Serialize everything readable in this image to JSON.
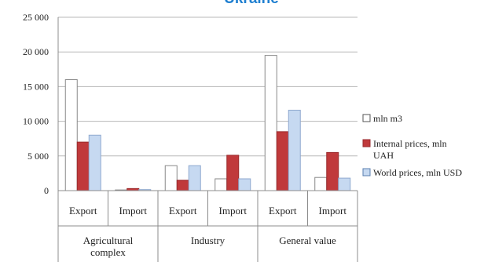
{
  "chart_data": {
    "type": "bar",
    "title": "Ukraine",
    "categories": [
      "Export",
      "Import",
      "Export",
      "Import",
      "Export",
      "Import"
    ],
    "groups": [
      {
        "label": "Agricultural complex",
        "categories": [
          "Export",
          "Import"
        ]
      },
      {
        "label": "Industry",
        "categories": [
          "Export",
          "Import"
        ]
      },
      {
        "label": "General value",
        "categories": [
          "Export",
          "Import"
        ]
      }
    ],
    "series": [
      {
        "name": "mln m3",
        "color": "#ffffff",
        "values": [
          16000,
          100,
          3600,
          1700,
          19500,
          1900
        ]
      },
      {
        "name": "Internal prices, mln UAH",
        "color": "#c0393b",
        "values": [
          7000,
          300,
          1500,
          5100,
          8500,
          5500
        ]
      },
      {
        "name": "World prices, mln USD",
        "color": "#c6d9f1",
        "values": [
          8000,
          150,
          3600,
          1700,
          11600,
          1800
        ]
      }
    ],
    "ylim": [
      0,
      25000
    ],
    "yticks": [
      "0",
      "5 000",
      "10 000",
      "15 000",
      "20 000",
      "25 000"
    ],
    "grid": true,
    "legend_position": "right"
  }
}
